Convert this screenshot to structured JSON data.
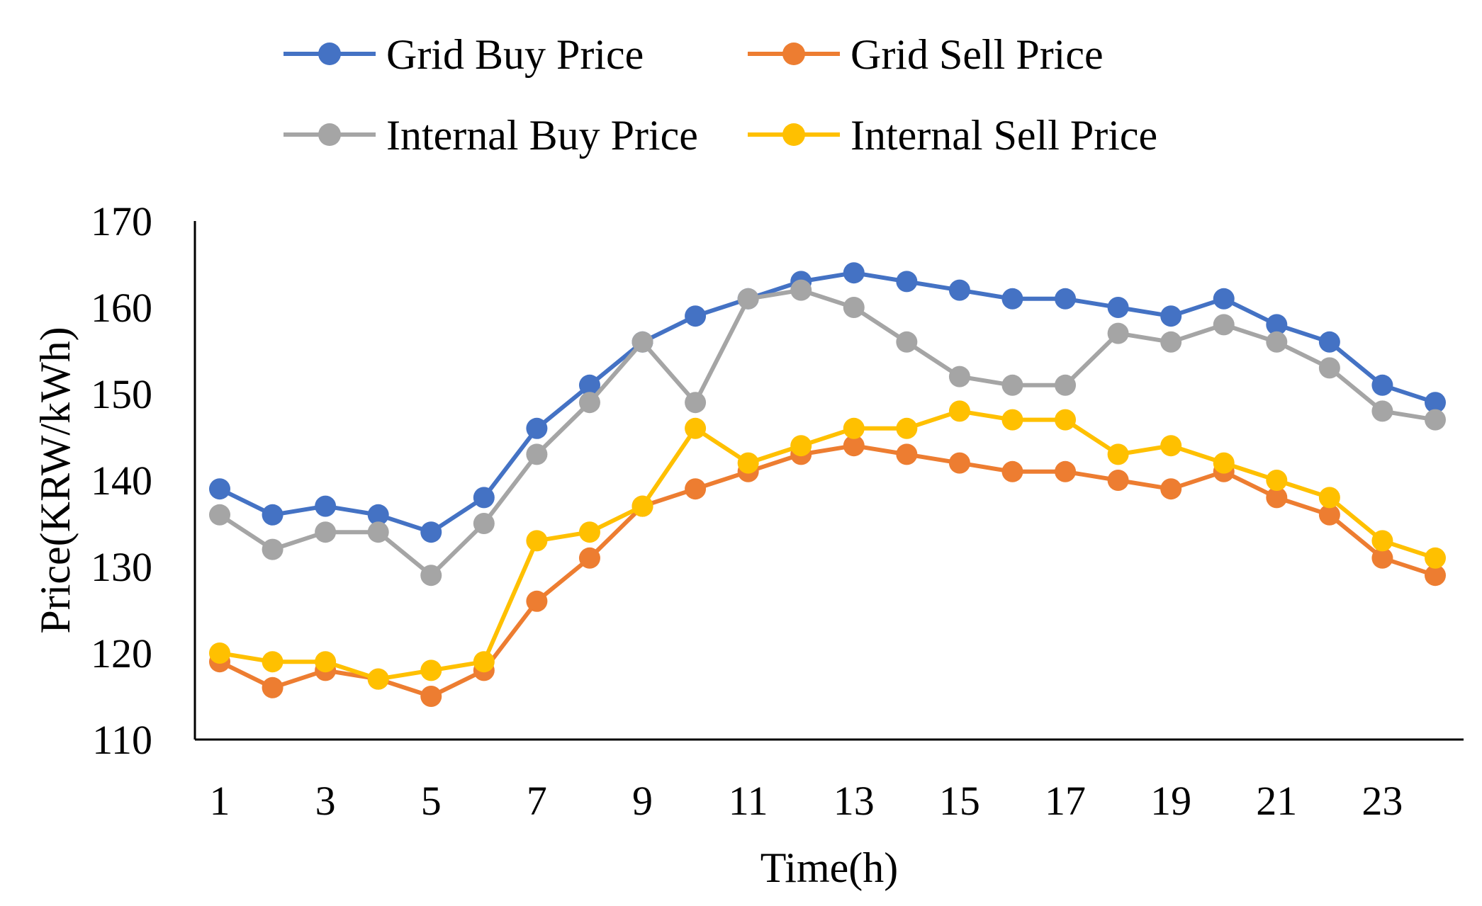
{
  "chart_data": {
    "type": "line",
    "title": "",
    "xlabel": "Time(h)",
    "ylabel": "Price(KRW/kWh)",
    "x": [
      1,
      2,
      3,
      4,
      5,
      6,
      7,
      8,
      9,
      10,
      11,
      12,
      13,
      14,
      15,
      16,
      17,
      18,
      19,
      20,
      21,
      22,
      23,
      24
    ],
    "x_tick_labels": [
      "1",
      "3",
      "5",
      "7",
      "9",
      "11",
      "13",
      "15",
      "17",
      "19",
      "21",
      "23"
    ],
    "x_tick_values": [
      1,
      3,
      5,
      7,
      9,
      11,
      13,
      15,
      17,
      19,
      21,
      23
    ],
    "ylim": [
      110,
      170
    ],
    "y_ticks": [
      110,
      120,
      130,
      140,
      150,
      160,
      170
    ],
    "grid": false,
    "legend_position": "top",
    "series": [
      {
        "name": "Grid Buy Price",
        "color": "#4472C4",
        "values": [
          139,
          136,
          137,
          136,
          134,
          138,
          146,
          151,
          156,
          159,
          161,
          163,
          164,
          163,
          162,
          161,
          161,
          160,
          159,
          161,
          158,
          156,
          151,
          149
        ]
      },
      {
        "name": "Grid Sell Price",
        "color": "#ED7D31",
        "values": [
          119,
          116,
          118,
          117,
          115,
          118,
          126,
          131,
          137,
          139,
          141,
          143,
          144,
          143,
          142,
          141,
          141,
          140,
          139,
          141,
          138,
          136,
          131,
          129
        ]
      },
      {
        "name": "Internal Buy Price",
        "color": "#A5A5A5",
        "values": [
          136,
          132,
          134,
          134,
          129,
          135,
          143,
          149,
          156,
          149,
          161,
          162,
          160,
          156,
          152,
          151,
          151,
          157,
          156,
          158,
          156,
          153,
          148,
          147
        ]
      },
      {
        "name": "Internal Sell Price",
        "color": "#FFC000",
        "values": [
          120,
          119,
          119,
          117,
          118,
          119,
          133,
          134,
          137,
          146,
          142,
          144,
          146,
          146,
          148,
          147,
          147,
          143,
          144,
          142,
          140,
          138,
          133,
          131
        ]
      }
    ]
  }
}
